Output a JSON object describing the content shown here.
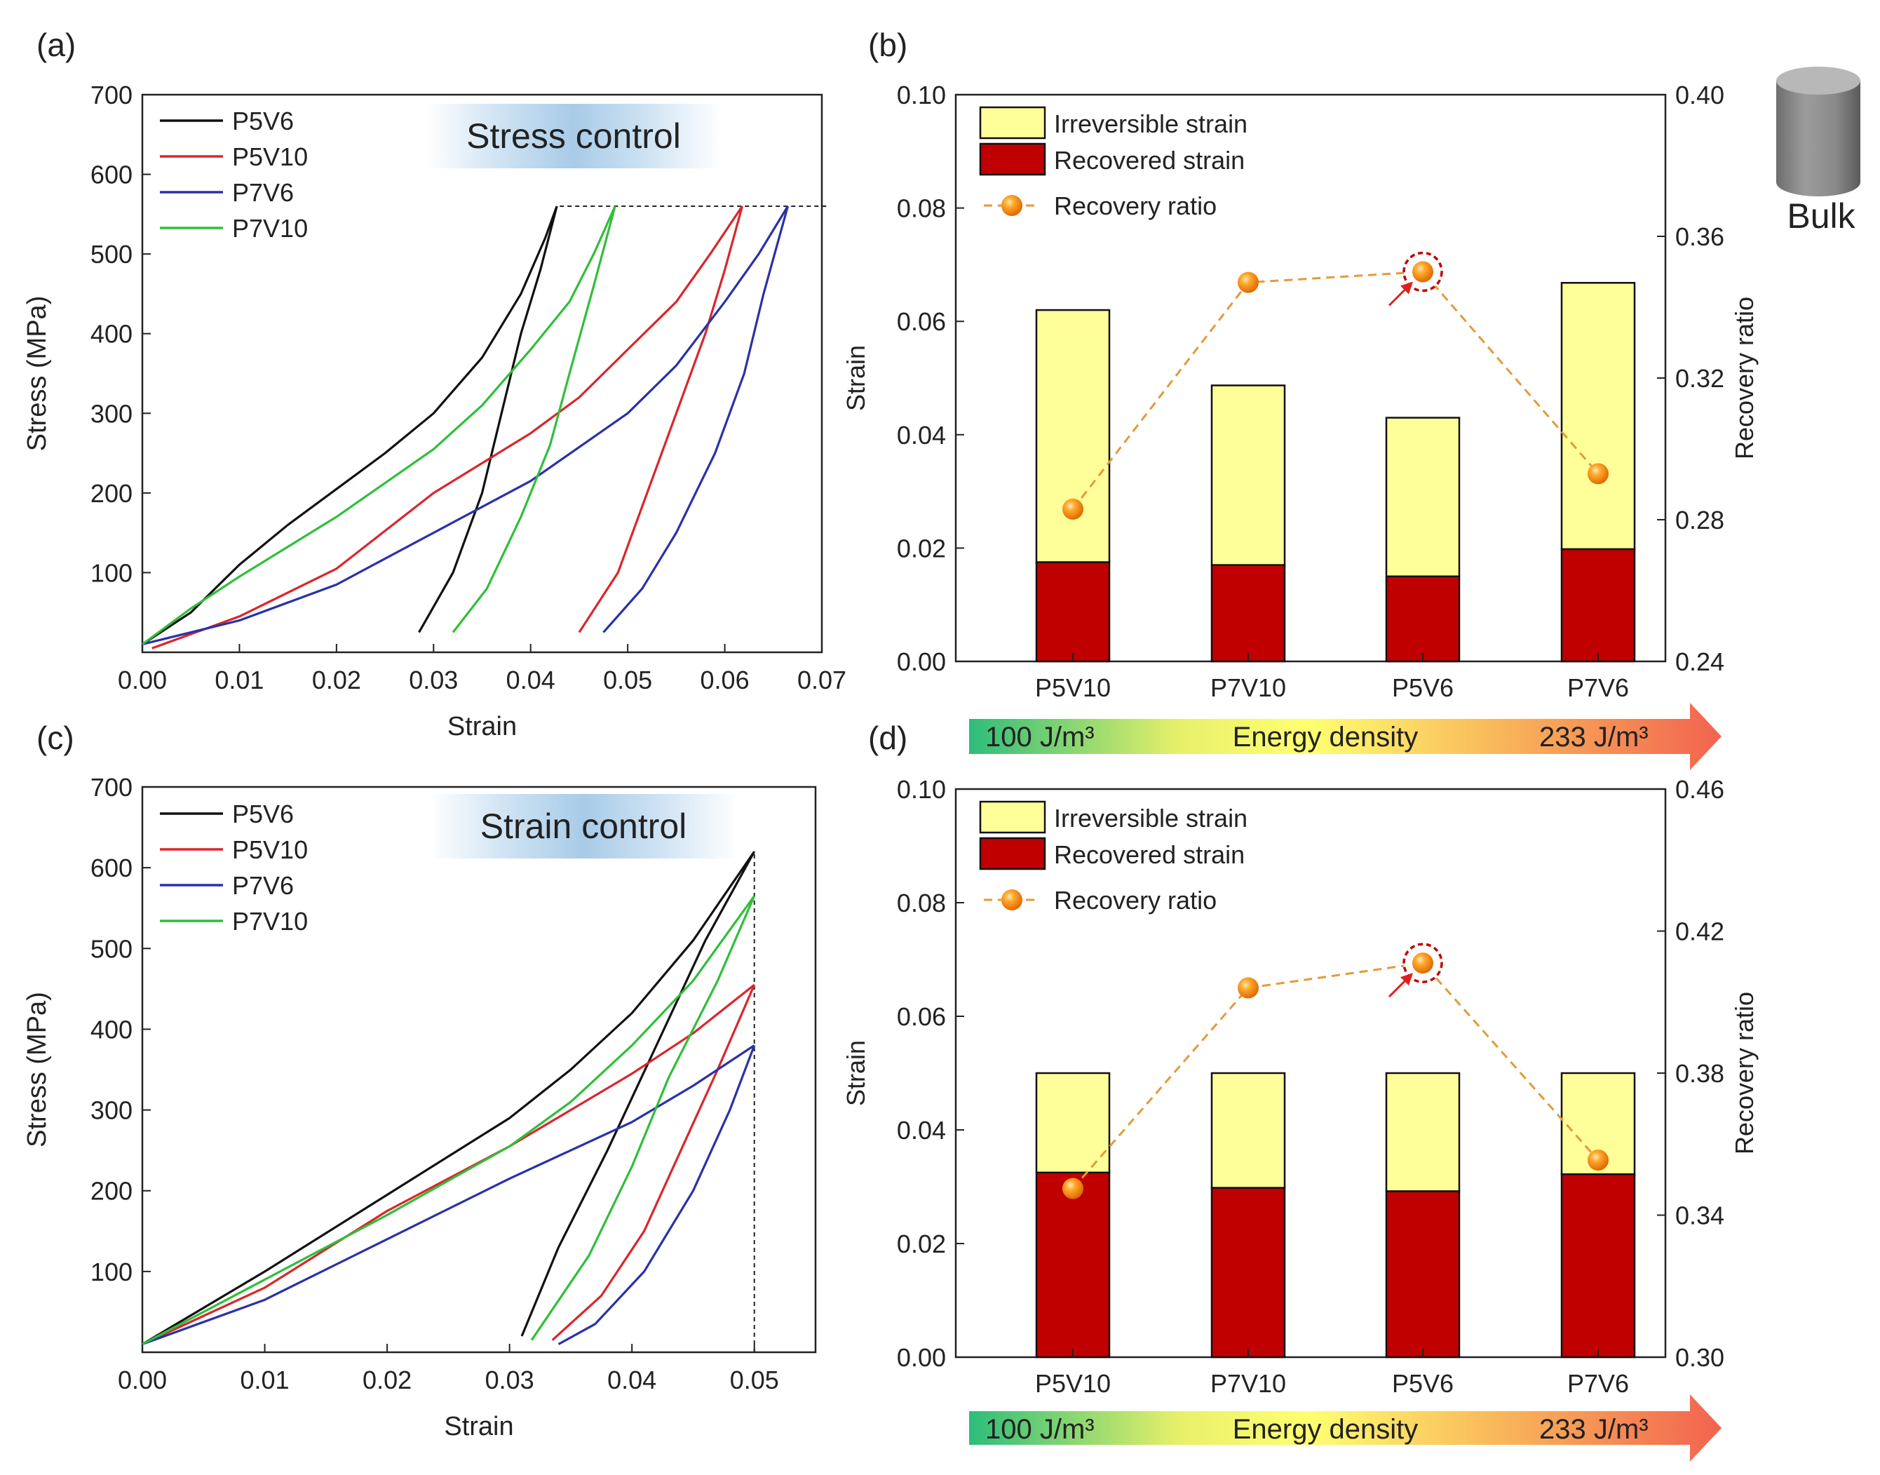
{
  "colors": {
    "black": "#111111",
    "red": "#d9262b",
    "blue": "#2a31a8",
    "green": "#2fbf3a",
    "yellow": "#ffff99",
    "darkred": "#c00000",
    "orange": "#f28c18",
    "dash": "#e39a3a"
  },
  "energy_bar": {
    "left": "100 J/m³",
    "mid": "Energy density",
    "right": "233 J/m³"
  },
  "bulk_label": "Bulk",
  "chart_data": [
    {
      "panel": "(a)",
      "type": "line",
      "title": "",
      "annotation": "Stress control",
      "xlabel": "Strain",
      "ylabel": "Stress (MPa)",
      "xlim": [
        0,
        0.07
      ],
      "ylim": [
        0,
        700
      ],
      "xticks": [
        "0.00",
        "0.01",
        "0.02",
        "0.03",
        "0.04",
        "0.05",
        "0.06",
        "0.07"
      ],
      "yticks": [
        "100",
        "200",
        "300",
        "400",
        "500",
        "600",
        "700"
      ],
      "xtick_values": [
        0,
        0.01,
        0.02,
        0.03,
        0.04,
        0.05,
        0.06,
        0.07
      ],
      "ytick_values": [
        100,
        200,
        300,
        400,
        500,
        600,
        700
      ],
      "ref_line": {
        "orientation": "horizontal",
        "value": 560,
        "from": 0.043,
        "to": 0.0705
      },
      "legend": [
        "P5V6",
        "P5V10",
        "P7V6",
        "P7V10"
      ],
      "series": [
        {
          "name": "P5V6",
          "color": "black",
          "load": [
            [
              0,
              10
            ],
            [
              0.005,
              50
            ],
            [
              0.01,
              110
            ],
            [
              0.015,
              160
            ],
            [
              0.02,
              205
            ],
            [
              0.025,
              250
            ],
            [
              0.03,
              300
            ],
            [
              0.035,
              370
            ],
            [
              0.039,
              450
            ],
            [
              0.0415,
              520
            ],
            [
              0.0427,
              560
            ]
          ],
          "unload": [
            [
              0.0427,
              560
            ],
            [
              0.041,
              480
            ],
            [
              0.039,
              400
            ],
            [
              0.037,
              300
            ],
            [
              0.035,
              200
            ],
            [
              0.032,
              100
            ],
            [
              0.0285,
              25
            ]
          ]
        },
        {
          "name": "P5V10",
          "color": "red",
          "load": [
            [
              0.001,
              5
            ],
            [
              0.01,
              45
            ],
            [
              0.02,
              105
            ],
            [
              0.03,
              200
            ],
            [
              0.04,
              275
            ],
            [
              0.045,
              320
            ],
            [
              0.05,
              380
            ],
            [
              0.055,
              440
            ],
            [
              0.0585,
              500
            ],
            [
              0.0618,
              560
            ]
          ],
          "unload": [
            [
              0.0618,
              560
            ],
            [
              0.06,
              480
            ],
            [
              0.058,
              400
            ],
            [
              0.055,
              300
            ],
            [
              0.052,
              200
            ],
            [
              0.049,
              100
            ],
            [
              0.045,
              25
            ]
          ]
        },
        {
          "name": "P7V6",
          "color": "blue",
          "load": [
            [
              0,
              10
            ],
            [
              0.01,
              40
            ],
            [
              0.02,
              85
            ],
            [
              0.03,
              150
            ],
            [
              0.04,
              215
            ],
            [
              0.05,
              300
            ],
            [
              0.055,
              360
            ],
            [
              0.06,
              440
            ],
            [
              0.0635,
              500
            ],
            [
              0.0665,
              560
            ]
          ],
          "unload": [
            [
              0.0665,
              560
            ],
            [
              0.064,
              450
            ],
            [
              0.062,
              350
            ],
            [
              0.059,
              250
            ],
            [
              0.055,
              150
            ],
            [
              0.0515,
              80
            ],
            [
              0.0475,
              25
            ]
          ]
        },
        {
          "name": "P7V10",
          "color": "green",
          "load": [
            [
              0,
              10
            ],
            [
              0.005,
              55
            ],
            [
              0.01,
              95
            ],
            [
              0.02,
              170
            ],
            [
              0.03,
              255
            ],
            [
              0.035,
              310
            ],
            [
              0.04,
              380
            ],
            [
              0.044,
              440
            ],
            [
              0.0465,
              500
            ],
            [
              0.0487,
              560
            ]
          ],
          "unload": [
            [
              0.0487,
              560
            ],
            [
              0.0465,
              460
            ],
            [
              0.044,
              350
            ],
            [
              0.042,
              260
            ],
            [
              0.039,
              170
            ],
            [
              0.0355,
              80
            ],
            [
              0.032,
              25
            ]
          ]
        }
      ]
    },
    {
      "panel": "(b)",
      "type": "bar",
      "title": "",
      "xlabel": "",
      "ylabel": "Strain",
      "y2label": "Recovery ratio",
      "ylim": [
        0,
        0.1
      ],
      "y2lim": [
        0.24,
        0.4
      ],
      "yticks": [
        "0.00",
        "0.02",
        "0.04",
        "0.06",
        "0.08",
        "0.10"
      ],
      "ytick_values": [
        0,
        0.02,
        0.04,
        0.06,
        0.08,
        0.1
      ],
      "y2ticks": [
        "0.24",
        "0.28",
        "0.32",
        "0.36",
        "0.40"
      ],
      "y2tick_values": [
        0.24,
        0.28,
        0.32,
        0.36,
        0.4
      ],
      "categories": [
        "P5V10",
        "P7V10",
        "P5V6",
        "P7V6"
      ],
      "legend": [
        "Irreversible strain",
        "Recovered strain",
        "Recovery ratio"
      ],
      "series": [
        {
          "name": "Recovered strain",
          "values": [
            0.0175,
            0.017,
            0.015,
            0.0198
          ]
        },
        {
          "name": "Irreversible strain",
          "values": [
            0.0445,
            0.0317,
            0.028,
            0.047
          ]
        },
        {
          "name": "Recovery ratio",
          "values": [
            0.283,
            0.347,
            0.35,
            0.293
          ]
        }
      ],
      "highlight_index": 2
    },
    {
      "panel": "(c)",
      "type": "line",
      "title": "",
      "annotation": "Strain control",
      "xlabel": "Strain",
      "ylabel": "Stress (MPa)",
      "xlim": [
        0,
        0.055
      ],
      "ylim": [
        0,
        700
      ],
      "xticks": [
        "0.00",
        "0.01",
        "0.02",
        "0.03",
        "0.04",
        "0.05"
      ],
      "yticks": [
        "100",
        "200",
        "300",
        "400",
        "500",
        "600",
        "700"
      ],
      "xtick_values": [
        0,
        0.01,
        0.02,
        0.03,
        0.04,
        0.05
      ],
      "ytick_values": [
        100,
        200,
        300,
        400,
        500,
        600,
        700
      ],
      "ref_line": {
        "orientation": "vertical",
        "value": 0.05,
        "from": 0,
        "to": 620
      },
      "legend": [
        "P5V6",
        "P5V10",
        "P7V6",
        "P7V10"
      ],
      "series": [
        {
          "name": "P5V6",
          "color": "black",
          "load": [
            [
              0,
              10
            ],
            [
              0.01,
              100
            ],
            [
              0.02,
              195
            ],
            [
              0.03,
              290
            ],
            [
              0.035,
              350
            ],
            [
              0.04,
              420
            ],
            [
              0.045,
              510
            ],
            [
              0.05,
              620
            ]
          ],
          "unload": [
            [
              0.05,
              620
            ],
            [
              0.046,
              510
            ],
            [
              0.042,
              380
            ],
            [
              0.038,
              250
            ],
            [
              0.034,
              130
            ],
            [
              0.031,
              20
            ]
          ]
        },
        {
          "name": "P5V10",
          "color": "red",
          "load": [
            [
              0,
              10
            ],
            [
              0.01,
              80
            ],
            [
              0.02,
              175
            ],
            [
              0.03,
              255
            ],
            [
              0.035,
              300
            ],
            [
              0.04,
              345
            ],
            [
              0.045,
              395
            ],
            [
              0.05,
              455
            ]
          ],
          "unload": [
            [
              0.05,
              455
            ],
            [
              0.047,
              350
            ],
            [
              0.044,
              250
            ],
            [
              0.041,
              150
            ],
            [
              0.0375,
              70
            ],
            [
              0.0335,
              15
            ]
          ]
        },
        {
          "name": "P7V6",
          "color": "blue",
          "load": [
            [
              0,
              10
            ],
            [
              0.01,
              65
            ],
            [
              0.02,
              140
            ],
            [
              0.03,
              215
            ],
            [
              0.04,
              285
            ],
            [
              0.045,
              330
            ],
            [
              0.05,
              380
            ]
          ],
          "unload": [
            [
              0.05,
              380
            ],
            [
              0.048,
              300
            ],
            [
              0.045,
              200
            ],
            [
              0.041,
              100
            ],
            [
              0.037,
              35
            ],
            [
              0.034,
              10
            ]
          ]
        },
        {
          "name": "P7V10",
          "color": "green",
          "load": [
            [
              0,
              10
            ],
            [
              0.01,
              90
            ],
            [
              0.02,
              170
            ],
            [
              0.03,
              255
            ],
            [
              0.035,
              310
            ],
            [
              0.04,
              380
            ],
            [
              0.045,
              460
            ],
            [
              0.05,
              565
            ]
          ],
          "unload": [
            [
              0.05,
              565
            ],
            [
              0.047,
              460
            ],
            [
              0.043,
              340
            ],
            [
              0.04,
              230
            ],
            [
              0.0365,
              120
            ],
            [
              0.0318,
              15
            ]
          ]
        }
      ]
    },
    {
      "panel": "(d)",
      "type": "bar",
      "title": "",
      "xlabel": "",
      "ylabel": "Strain",
      "y2label": "Recovery ratio",
      "ylim": [
        0,
        0.1
      ],
      "y2lim": [
        0.3,
        0.46
      ],
      "yticks": [
        "0.00",
        "0.02",
        "0.04",
        "0.06",
        "0.08",
        "0.10"
      ],
      "ytick_values": [
        0,
        0.02,
        0.04,
        0.06,
        0.08,
        0.1
      ],
      "y2ticks": [
        "0.30",
        "0.34",
        "0.38",
        "0.42",
        "0.46"
      ],
      "y2tick_values": [
        0.3,
        0.34,
        0.38,
        0.42,
        0.46
      ],
      "categories": [
        "P5V10",
        "P7V10",
        "P5V6",
        "P7V6"
      ],
      "legend": [
        "Irreversible strain",
        "Recovered strain",
        "Recovery ratio"
      ],
      "series": [
        {
          "name": "Recovered strain",
          "values": [
            0.0325,
            0.0298,
            0.0292,
            0.0322
          ]
        },
        {
          "name": "Irreversible strain",
          "values": [
            0.0175,
            0.0202,
            0.0208,
            0.0178
          ]
        },
        {
          "name": "Recovery ratio",
          "values": [
            0.3475,
            0.404,
            0.411,
            0.3555
          ]
        }
      ],
      "highlight_index": 2
    }
  ]
}
